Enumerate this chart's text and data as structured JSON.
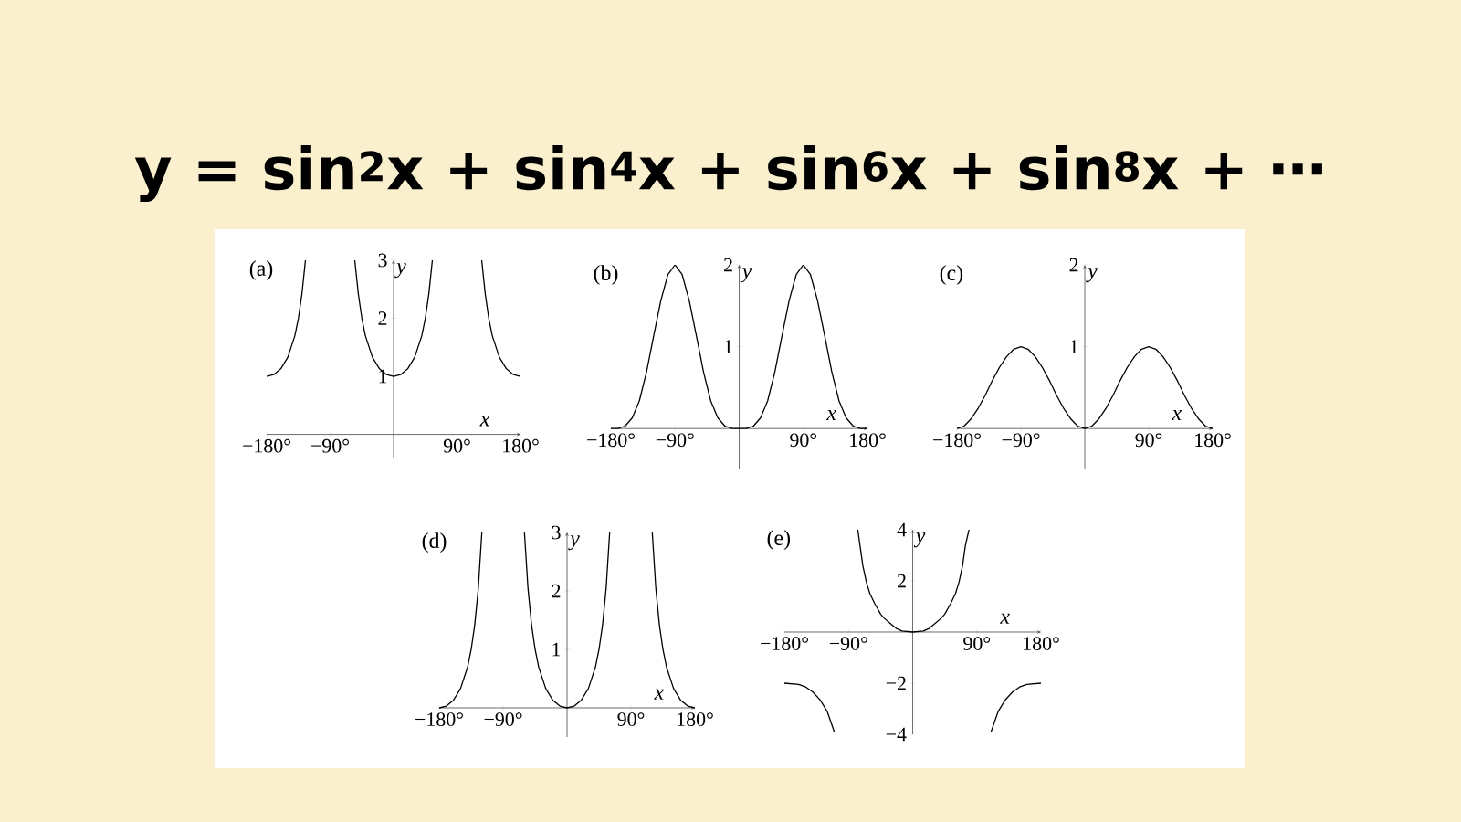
{
  "chart_data": [
    {
      "type": "line",
      "title": "(a)",
      "annotations": [
        "y = sin$^{2}$x + sin$^{4}$x + sin$^{6}$x + sin$^{8}$x + ⋯"
      ],
      "xlabel": "x",
      "ylabel": "y",
      "xlim": [
        -180,
        180
      ],
      "ylim": [
        -0.4,
        3
      ],
      "xticks": [
        {
          "value": -180,
          "label": "−180°"
        },
        {
          "value": -90,
          "label": "−90°"
        },
        {
          "value": 90,
          "label": "90°"
        },
        {
          "value": 180,
          "label": "180°"
        }
      ],
      "yticks": [
        1,
        2,
        3
      ],
      "series": [
        {
          "color": "#000000",
          "x": [
            -180,
            -170,
            -160,
            -150,
            -140,
            -135,
            -130,
            -125,
            -90,
            -55,
            -50,
            -45,
            -40,
            -30,
            -20,
            -10,
            0,
            10,
            20,
            30,
            40,
            45,
            50,
            55,
            90,
            125,
            130,
            135,
            140,
            150,
            160,
            170,
            180
          ],
          "values": [
            1,
            1.03,
            1.13,
            1.33,
            1.7,
            2,
            2.42,
            3,
            null,
            3,
            2.42,
            2,
            1.7,
            1.33,
            1.13,
            1.03,
            1,
            1.03,
            1.13,
            1.33,
            1.7,
            2,
            2.42,
            3,
            null,
            3,
            2.42,
            2,
            1.7,
            1.33,
            1.13,
            1.03,
            1
          ]
        }
      ]
    },
    {
      "type": "line",
      "title": "(b)",
      "xlabel": "x",
      "ylabel": "y",
      "xlim": [
        -180,
        180
      ],
      "ylim": [
        -0.5,
        2
      ],
      "xticks": [
        {
          "value": -180,
          "label": "−180°"
        },
        {
          "value": -90,
          "label": "−90°"
        },
        {
          "value": 90,
          "label": "90°"
        },
        {
          "value": 180,
          "label": "180°"
        }
      ],
      "yticks": [
        1,
        2
      ],
      "series": [
        {
          "color": "#000000",
          "x": [
            -180,
            -170,
            -160,
            -150,
            -140,
            -130,
            -120,
            -110,
            -100,
            -90,
            -80,
            -70,
            -60,
            -50,
            -40,
            -30,
            -20,
            -10,
            0,
            10,
            20,
            30,
            40,
            50,
            60,
            70,
            80,
            90,
            100,
            110,
            120,
            130,
            140,
            150,
            160,
            170,
            180
          ],
          "values": [
            0,
            0,
            0.03,
            0.13,
            0.34,
            0.69,
            1.13,
            1.56,
            1.88,
            2,
            1.88,
            1.56,
            1.13,
            0.69,
            0.34,
            0.13,
            0.03,
            0,
            0,
            0,
            0.03,
            0.13,
            0.34,
            0.69,
            1.13,
            1.56,
            1.88,
            2,
            1.88,
            1.56,
            1.13,
            0.69,
            0.34,
            0.13,
            0.03,
            0,
            0
          ]
        }
      ]
    },
    {
      "type": "line",
      "title": "(c)",
      "xlabel": "x",
      "ylabel": "y",
      "xlim": [
        -180,
        180
      ],
      "ylim": [
        -0.5,
        2
      ],
      "xticks": [
        {
          "value": -180,
          "label": "−180°"
        },
        {
          "value": -90,
          "label": "−90°"
        },
        {
          "value": 90,
          "label": "90°"
        },
        {
          "value": 180,
          "label": "180°"
        }
      ],
      "yticks": [
        1,
        2
      ],
      "series": [
        {
          "color": "#000000",
          "x": [
            -180,
            -170,
            -160,
            -150,
            -140,
            -130,
            -120,
            -110,
            -100,
            -90,
            -80,
            -70,
            -60,
            -50,
            -40,
            -30,
            -20,
            -10,
            0,
            10,
            20,
            30,
            40,
            50,
            60,
            70,
            80,
            90,
            100,
            110,
            120,
            130,
            140,
            150,
            160,
            170,
            180
          ],
          "values": [
            0,
            0.03,
            0.12,
            0.25,
            0.41,
            0.59,
            0.75,
            0.88,
            0.97,
            1,
            0.97,
            0.88,
            0.75,
            0.59,
            0.41,
            0.25,
            0.12,
            0.03,
            0,
            0.03,
            0.12,
            0.25,
            0.41,
            0.59,
            0.75,
            0.88,
            0.97,
            1,
            0.97,
            0.88,
            0.75,
            0.59,
            0.41,
            0.25,
            0.12,
            0.03,
            0
          ]
        }
      ]
    },
    {
      "type": "line",
      "title": "(d)",
      "xlabel": "x",
      "ylabel": "y",
      "xlim": [
        -180,
        180
      ],
      "ylim": [
        -0.5,
        3
      ],
      "xticks": [
        {
          "value": -180,
          "label": "−180°"
        },
        {
          "value": -90,
          "label": "−90°"
        },
        {
          "value": 90,
          "label": "90°"
        },
        {
          "value": 180,
          "label": "180°"
        }
      ],
      "yticks": [
        1,
        2,
        3
      ],
      "series": [
        {
          "color": "#000000",
          "x": [
            -180,
            -170,
            -160,
            -150,
            -140,
            -135,
            -130,
            -125,
            -120,
            -90,
            -60,
            -55,
            -50,
            -45,
            -40,
            -30,
            -20,
            -10,
            0,
            10,
            20,
            30,
            40,
            45,
            50,
            55,
            60,
            90,
            120,
            125,
            130,
            135,
            140,
            150,
            160,
            170,
            180
          ],
          "values": [
            0,
            0.03,
            0.13,
            0.33,
            0.7,
            1,
            1.42,
            2.04,
            3,
            null,
            3,
            2.04,
            1.42,
            1,
            0.7,
            0.33,
            0.13,
            0.03,
            0,
            0.03,
            0.13,
            0.33,
            0.7,
            1,
            1.42,
            2.04,
            3,
            null,
            3,
            2.04,
            1.42,
            1,
            0.7,
            0.33,
            0.13,
            0.03,
            0
          ]
        }
      ]
    },
    {
      "type": "line",
      "title": "(e)",
      "xlabel": "x",
      "ylabel": "y",
      "xlim": [
        -180,
        180
      ],
      "ylim": [
        -4,
        4
      ],
      "xticks": [
        {
          "value": -180,
          "label": "−180°"
        },
        {
          "value": -90,
          "label": "−90°"
        },
        {
          "value": 90,
          "label": "90°"
        },
        {
          "value": 180,
          "label": "180°"
        }
      ],
      "yticks": [
        {
          "value": -4,
          "label": "−4"
        },
        {
          "value": -2,
          "label": "−2"
        },
        2,
        4
      ],
      "series": [
        {
          "color": "#000000",
          "x": [
            -180,
            -160,
            -150,
            -140,
            -130,
            -120,
            -110,
            -90,
            -77,
            -74,
            -70,
            -65,
            -60,
            -53,
            -45,
            -40,
            -30,
            -23,
            -15,
            0,
            15,
            23,
            30,
            40,
            45,
            53,
            60,
            65,
            70,
            74,
            79,
            90,
            110,
            120,
            130,
            140,
            150,
            160,
            180
          ],
          "values": [
            -2,
            -2.05,
            -2.15,
            -2.35,
            -2.65,
            -3.1,
            -3.9,
            null,
            4,
            3.4,
            2.6,
            1.95,
            1.5,
            1.1,
            0.7,
            0.54,
            0.3,
            0.14,
            0.04,
            0,
            0.04,
            0.14,
            0.3,
            0.54,
            0.7,
            1.1,
            1.5,
            1.95,
            2.6,
            3.4,
            4,
            null,
            -3.9,
            -3.1,
            -2.65,
            -2.35,
            -2.15,
            -2.05,
            -2
          ]
        }
      ]
    }
  ]
}
